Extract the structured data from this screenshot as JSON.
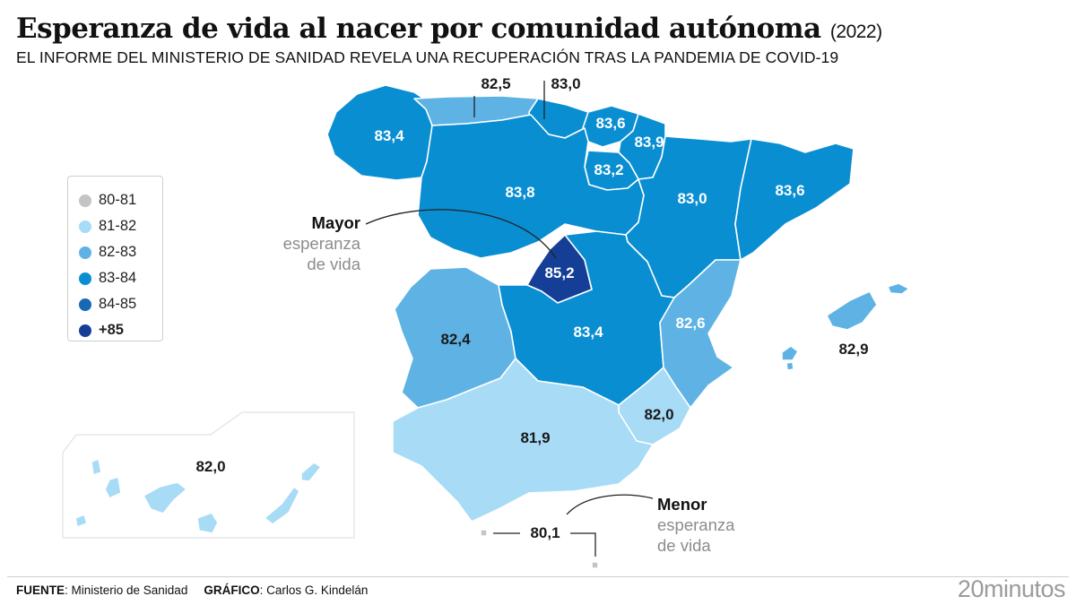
{
  "header": {
    "title": "Esperanza de vida al nacer por comunidad autónoma",
    "year": "(2022)",
    "subtitle": "EL INFORME DEL MINISTERIO DE SANIDAD REVELA UNA RECUPERACIÓN TRAS LA PANDEMIA DE COVID-19"
  },
  "legend": {
    "items": [
      {
        "label": "80-81",
        "color": "#c4c4c4"
      },
      {
        "label": "81-82",
        "color": "#a7dbf6"
      },
      {
        "label": "82-83",
        "color": "#5fb3e4"
      },
      {
        "label": "83-84",
        "color": "#0a8ed2"
      },
      {
        "label": "84-85",
        "color": "#1769b6"
      },
      {
        "label": "+85",
        "color": "#153f97"
      }
    ]
  },
  "regions": {
    "galicia": {
      "name": "Galicia",
      "value": "83,4",
      "class": "83-84"
    },
    "asturias": {
      "name": "Asturias",
      "value": "82,5",
      "class": "82-83"
    },
    "cantabria": {
      "name": "Cantabria",
      "value": "83,0",
      "class": "83-84"
    },
    "pais_vasco": {
      "name": "País Vasco",
      "value": "83,6",
      "class": "83-84"
    },
    "navarra": {
      "name": "Navarra",
      "value": "83,9",
      "class": "83-84"
    },
    "la_rioja": {
      "name": "La Rioja",
      "value": "83,2",
      "class": "83-84"
    },
    "castilla_leon": {
      "name": "Castilla y León",
      "value": "83,8",
      "class": "83-84"
    },
    "aragon": {
      "name": "Aragón",
      "value": "83,0",
      "class": "83-84"
    },
    "cataluna": {
      "name": "Cataluña",
      "value": "83,6",
      "class": "83-84"
    },
    "madrid": {
      "name": "Madrid",
      "value": "85,2",
      "class": "+85"
    },
    "extremadura": {
      "name": "Extremadura",
      "value": "82,4",
      "class": "82-83"
    },
    "castilla_la_mancha": {
      "name": "Castilla-La Mancha",
      "value": "83,4",
      "class": "83-84"
    },
    "valencia": {
      "name": "Comunidad Valenciana",
      "value": "82,6",
      "class": "82-83"
    },
    "baleares": {
      "name": "Islas Baleares",
      "value": "82,9",
      "class": "82-83"
    },
    "murcia": {
      "name": "Murcia",
      "value": "82,0",
      "class": "81-82"
    },
    "andalucia": {
      "name": "Andalucía",
      "value": "81,9",
      "class": "81-82"
    },
    "canarias": {
      "name": "Canarias",
      "value": "82,0",
      "class": "81-82"
    },
    "ceuta_melilla": {
      "name": "Ceuta y Melilla",
      "value": "80,1",
      "class": "80-81"
    }
  },
  "callouts": {
    "max": {
      "lead": "Mayor",
      "rest1": "esperanza",
      "rest2": "de vida"
    },
    "min": {
      "lead": "Menor",
      "rest1": "esperanza",
      "rest2": "de vida"
    }
  },
  "footer": {
    "source_label": "FUENTE",
    "source_value": ": Ministerio de Sanidad",
    "graphic_label": "GRÁFICO",
    "graphic_value": ": Carlos G. Kindelán",
    "brand": "20minutos"
  }
}
